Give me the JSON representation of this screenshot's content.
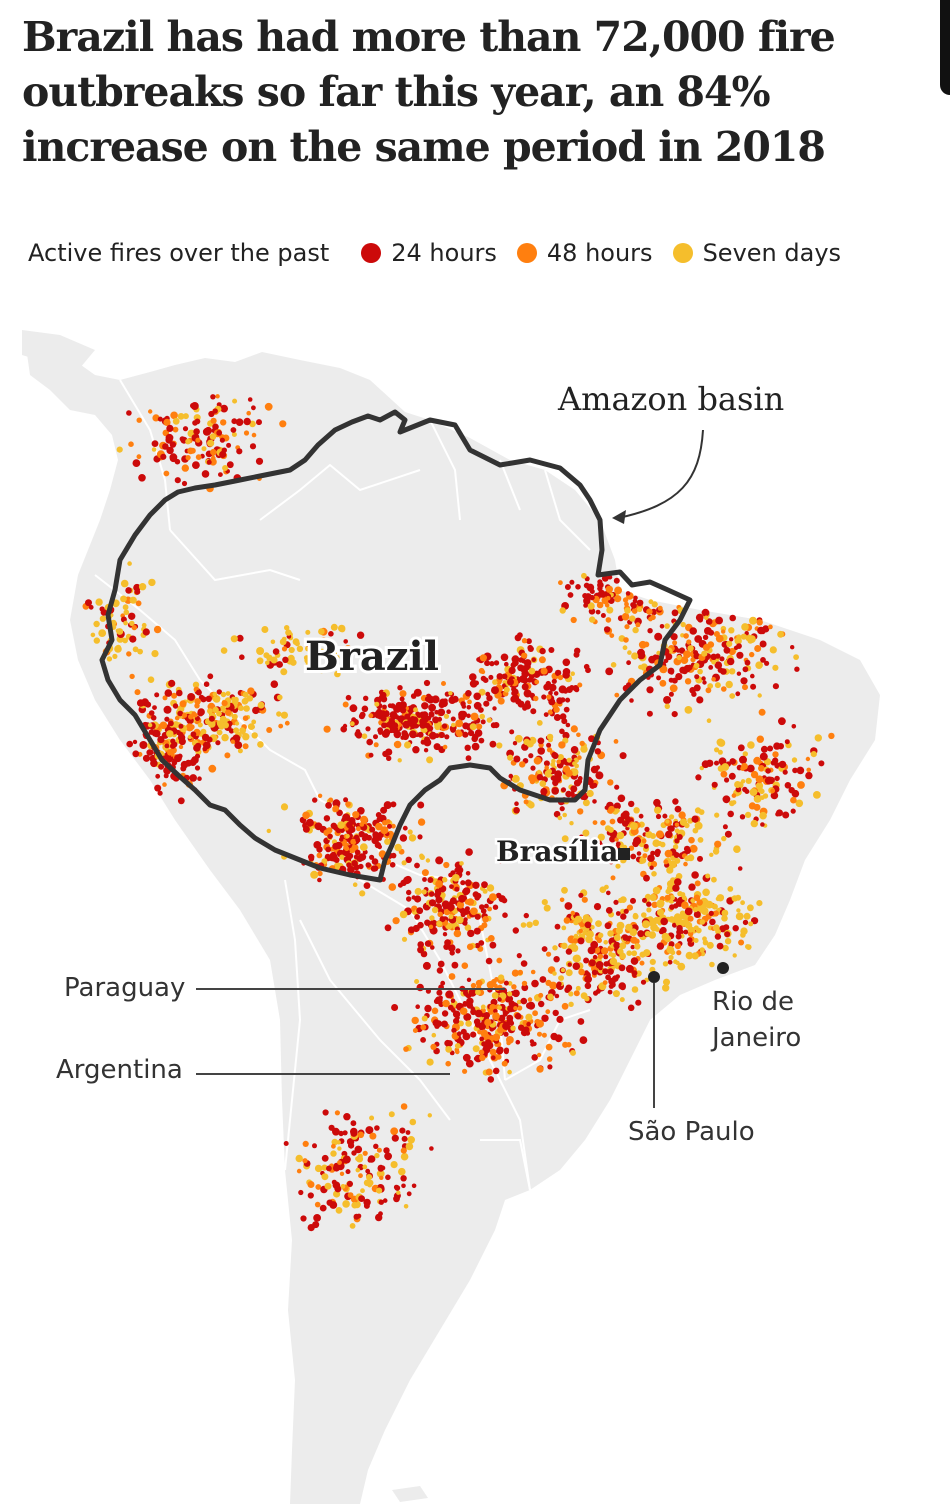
{
  "title": "Brazil has had more than 72,000 fire outbreaks so far this year, an 84% increase on the same period in 2018",
  "legend": {
    "label": "Active fires over the past",
    "items": [
      {
        "label": "24 hours",
        "color": "#cc0a0a"
      },
      {
        "label": "48 hours",
        "color": "#ff7f0f"
      },
      {
        "label": "Seven days",
        "color": "#f5be2c"
      }
    ]
  },
  "colors": {
    "land": "#ececec",
    "border": "#ffffff",
    "basin_outline": "#333333",
    "fire_24h": "#cc0a0a",
    "fire_48h": "#ff7f0f",
    "fire_7d": "#f5be2c"
  },
  "map": {
    "basin_label": "Amazon basin",
    "country_label": "Brazil",
    "capital_label": "Brasília",
    "paraguay_label": "Paraguay",
    "argentina_label": "Argentina",
    "rio_label_line1": "Rio de",
    "rio_label_line2": "Janeiro",
    "sao_paulo_label": "São Paulo"
  }
}
